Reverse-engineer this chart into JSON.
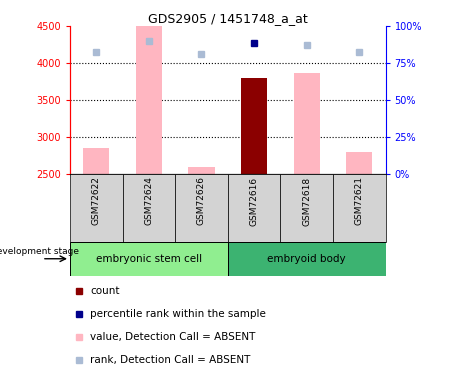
{
  "title": "GDS2905 / 1451748_a_at",
  "samples": [
    "GSM72622",
    "GSM72624",
    "GSM72626",
    "GSM72616",
    "GSM72618",
    "GSM72621"
  ],
  "bar_values_absent": [
    2850,
    4500,
    2600,
    null,
    3870,
    2800
  ],
  "bar_values_present": [
    null,
    null,
    null,
    3800,
    null,
    null
  ],
  "rank_absent": [
    82.5,
    90.0,
    81.0,
    null,
    87.5,
    82.5
  ],
  "rank_present": [
    null,
    null,
    null,
    89.0,
    null,
    null
  ],
  "ylim_left": [
    2500,
    4500
  ],
  "ylim_right": [
    0,
    100
  ],
  "yticks_left": [
    2500,
    3000,
    3500,
    4000,
    4500
  ],
  "ytick_labels_right": [
    "0%",
    "25%",
    "50%",
    "75%",
    "100%"
  ],
  "yticks_right": [
    0,
    25,
    50,
    75,
    100
  ],
  "bar_width": 0.5,
  "absent_bar_color": "#FFB6C1",
  "present_bar_color": "#8B0000",
  "absent_rank_color": "#AABBD4",
  "present_rank_color": "#00008B",
  "grid_color": "black",
  "gridlines": [
    3000,
    3500,
    4000
  ],
  "legend_items": [
    {
      "label": "count",
      "color": "#8B0000"
    },
    {
      "label": "percentile rank within the sample",
      "color": "#00008B"
    },
    {
      "label": "value, Detection Call = ABSENT",
      "color": "#FFB6C1"
    },
    {
      "label": "rank, Detection Call = ABSENT",
      "color": "#AABBD4"
    }
  ],
  "group1_name": "embryonic stem cell",
  "group1_color": "#90EE90",
  "group1_count": 3,
  "group2_name": "embryoid body",
  "group2_color": "#3CB371",
  "group2_count": 3,
  "dev_stage_label": "development stage"
}
